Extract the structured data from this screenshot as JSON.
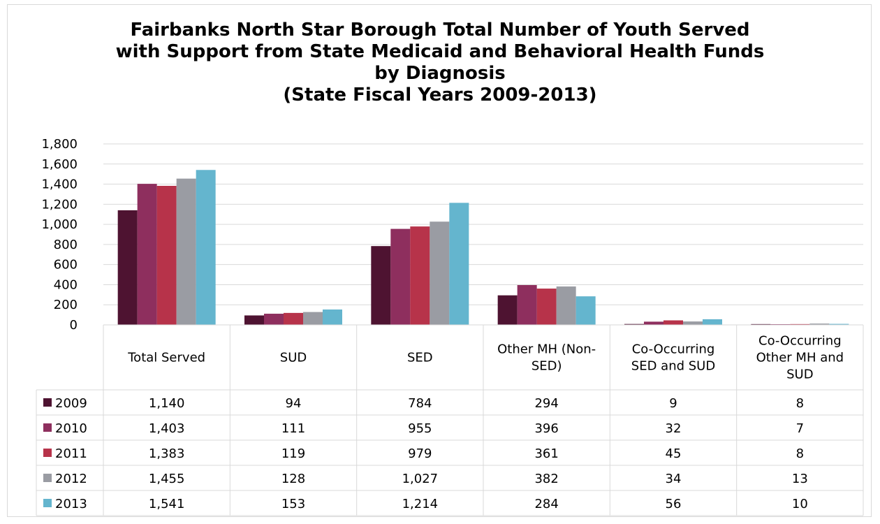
{
  "chart_data": {
    "type": "bar",
    "title_lines": [
      "Fairbanks North Star Borough Total Number of Youth Served",
      "with Support from State Medicaid and Behavioral Health Funds",
      "by Diagnosis",
      "(State Fiscal Years 2009-2013)"
    ],
    "categories": [
      [
        "Total Served"
      ],
      [
        "SUD"
      ],
      [
        "SED"
      ],
      [
        "Other MH (Non-",
        "SED)"
      ],
      [
        "Co-Occurring",
        "SED and SUD"
      ],
      [
        "Co-Occurring",
        "Other MH and",
        "SUD"
      ]
    ],
    "ylim": [
      0,
      1800
    ],
    "yticks": [
      "0",
      "200",
      "400",
      "600",
      "800",
      "1,000",
      "1,200",
      "1,400",
      "1,600",
      "1,800"
    ],
    "grid": true,
    "legend": "data-table",
    "series": [
      {
        "name": "2009",
        "color": "#4e1331",
        "values": [
          1140,
          94,
          784,
          294,
          9,
          8
        ],
        "labels": [
          "1,140",
          "94",
          "784",
          "294",
          "9",
          "8"
        ]
      },
      {
        "name": "2010",
        "color": "#8e2f5e",
        "values": [
          1403,
          111,
          955,
          396,
          32,
          7
        ],
        "labels": [
          "1,403",
          "111",
          "955",
          "396",
          "32",
          "7"
        ]
      },
      {
        "name": "2011",
        "color": "#b7334a",
        "values": [
          1383,
          119,
          979,
          361,
          45,
          8
        ],
        "labels": [
          "1,383",
          "119",
          "979",
          "361",
          "45",
          "8"
        ]
      },
      {
        "name": "2012",
        "color": "#9a9ca3",
        "values": [
          1455,
          128,
          1027,
          382,
          34,
          13
        ],
        "labels": [
          "1,455",
          "128",
          "1,027",
          "382",
          "34",
          "13"
        ]
      },
      {
        "name": "2013",
        "color": "#64b5ce",
        "values": [
          1541,
          153,
          1214,
          284,
          56,
          10
        ],
        "labels": [
          "1,541",
          "153",
          "1,214",
          "284",
          "56",
          "10"
        ]
      }
    ]
  }
}
